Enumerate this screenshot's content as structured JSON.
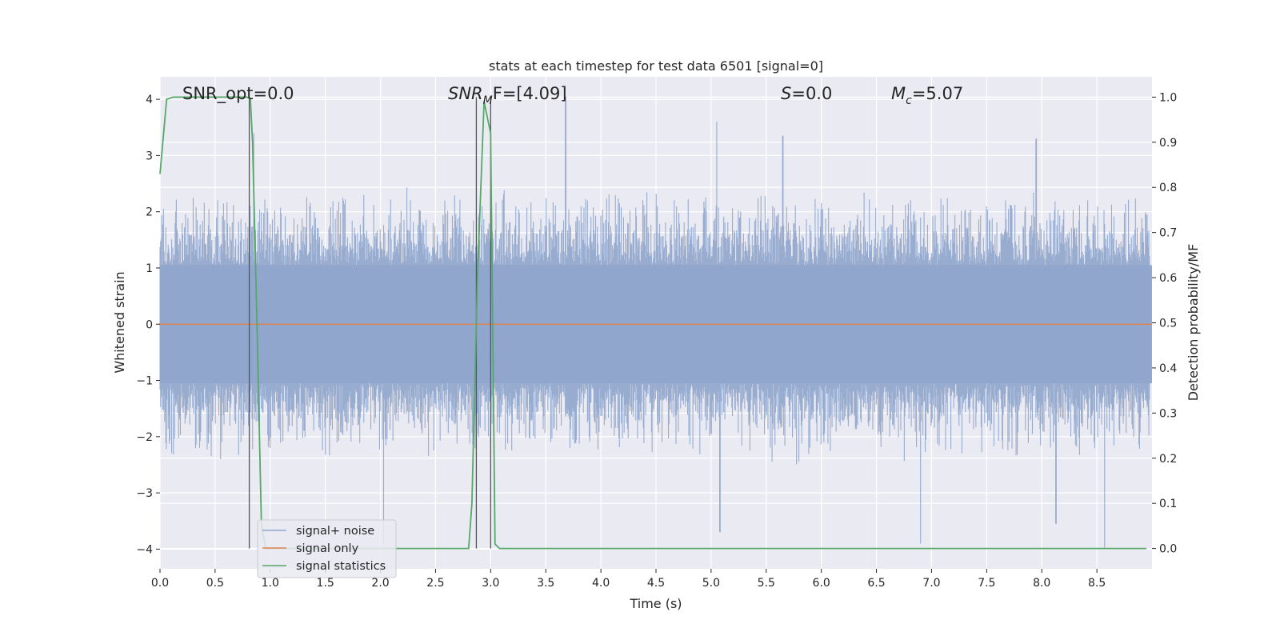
{
  "chart_data": {
    "type": "line",
    "title": "stats at each timestep for test data 6501 [signal=0]",
    "xlabel": "Time (s)",
    "ylabel": "Whitened strain",
    "ylabel_right": "Detection probability/MF",
    "xlim": [
      0.0,
      9.0
    ],
    "ylim": [
      -4.35,
      4.4
    ],
    "ylim_right": [
      -0.045,
      1.045
    ],
    "x_ticks": [
      0.0,
      0.5,
      1.0,
      1.5,
      2.0,
      2.5,
      3.0,
      3.5,
      4.0,
      4.5,
      5.0,
      5.5,
      6.0,
      6.5,
      7.0,
      7.5,
      8.0,
      8.5
    ],
    "x_tick_labels": [
      "0.0",
      "0.5",
      "1.0",
      "1.5",
      "2.0",
      "2.5",
      "3.0",
      "3.5",
      "4.0",
      "4.5",
      "5.0",
      "5.5",
      "6.0",
      "6.5",
      "7.0",
      "7.5",
      "8.0",
      "8.5"
    ],
    "y_ticks": [
      -4,
      -3,
      -2,
      -1,
      0,
      1,
      2,
      3,
      4
    ],
    "y_tick_labels": [
      "−4",
      "−3",
      "−2",
      "−1",
      "0",
      "1",
      "2",
      "3",
      "4"
    ],
    "y_ticks_right": [
      0.0,
      0.1,
      0.2,
      0.3,
      0.4,
      0.5,
      0.6,
      0.7,
      0.8,
      0.9,
      1.0
    ],
    "y_tick_labels_right": [
      "0.0",
      "0.1",
      "0.2",
      "0.3",
      "0.4",
      "0.5",
      "0.6",
      "0.7",
      "0.8",
      "0.9",
      "1.0"
    ],
    "grid": true,
    "legend_position": "lower-left",
    "annotations": {
      "snr_opt": "SNR_opt=0.0",
      "snr_mf_base": "SNR",
      "snr_mf_sub": "M",
      "snr_mf_rest": "F=[4.09]",
      "s_symbol": "S",
      "s_value": "=0.0",
      "mc_symbol": "M",
      "mc_sub": "c",
      "mc_value": "=5.07"
    },
    "vertical_lines": [
      0.81,
      2.87,
      3.0
    ],
    "series": [
      {
        "name": "signal+ noise",
        "color": "#8fa5cc",
        "axis": "left",
        "description_envelope": {
          "typical_abs_max": 2.2,
          "peak_positive": [
            [
              0.85,
              3.4
            ],
            [
              3.68,
              4.05
            ],
            [
              5.05,
              3.6
            ],
            [
              5.65,
              3.35
            ],
            [
              7.95,
              3.3
            ]
          ],
          "peak_negative": [
            [
              2.03,
              -3.9
            ],
            [
              5.08,
              -3.7
            ],
            [
              6.9,
              -3.9
            ],
            [
              8.13,
              -3.55
            ],
            [
              8.57,
              -4.0
            ]
          ]
        }
      },
      {
        "name": "signal only",
        "color": "#dd8452",
        "axis": "left",
        "x": [
          0.0,
          9.0
        ],
        "y": [
          0.0,
          0.0
        ]
      },
      {
        "name": "signal statistics",
        "color": "#55a868",
        "axis": "right",
        "x": [
          0.0,
          0.06,
          0.12,
          0.2,
          0.3,
          0.5,
          0.7,
          0.79,
          0.82,
          0.84,
          0.88,
          0.92,
          0.96,
          1.0,
          2.0,
          2.5,
          2.8,
          2.83,
          2.88,
          2.94,
          3.0,
          3.04,
          3.08,
          3.14,
          4.0,
          5.0,
          6.0,
          7.0,
          8.0,
          8.95
        ],
        "y": [
          0.83,
          0.995,
          1.0,
          1.0,
          1.0,
          1.0,
          1.0,
          1.0,
          0.995,
          0.9,
          0.5,
          0.05,
          0.0,
          0.0,
          0.0,
          0.0,
          0.0,
          0.1,
          0.6,
          0.99,
          0.92,
          0.01,
          0.0,
          0.0,
          0.0,
          0.0,
          0.0,
          0.0,
          0.0,
          0.0
        ]
      }
    ]
  }
}
